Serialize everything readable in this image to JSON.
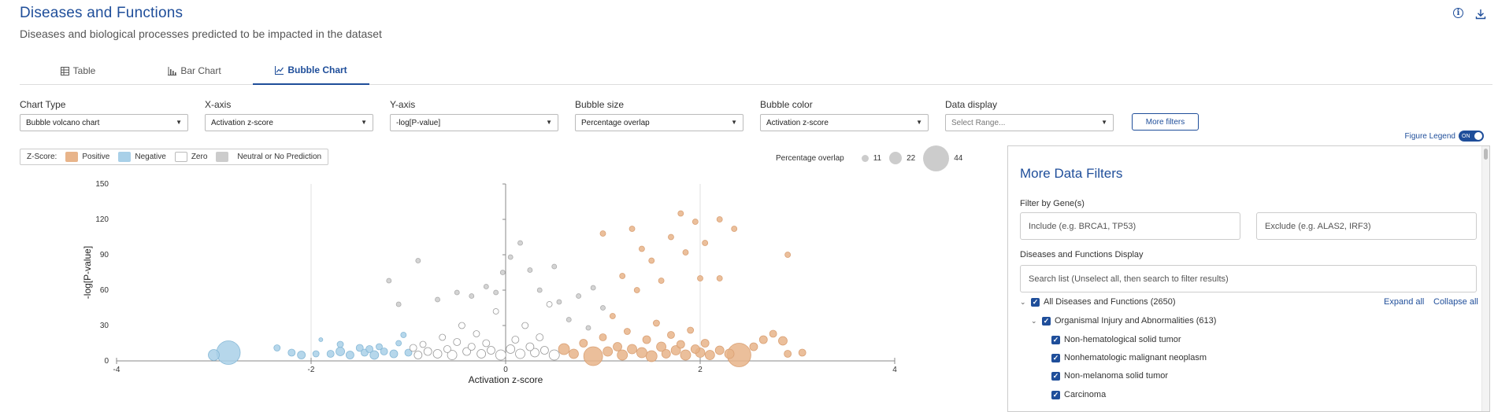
{
  "header": {
    "title": "Diseases and Functions",
    "subtitle": "Diseases and biological processes predicted to be impacted in the dataset",
    "info_icon": "info-icon",
    "download_icon": "download-icon"
  },
  "tabs": [
    {
      "label": "Table",
      "icon": "table-icon",
      "active": false
    },
    {
      "label": "Bar Chart",
      "icon": "bar-chart-icon",
      "active": false
    },
    {
      "label": "Bubble Chart",
      "icon": "line-chart-icon",
      "active": true
    }
  ],
  "controls": {
    "chart_type": {
      "label": "Chart Type",
      "value": "Bubble volcano chart"
    },
    "x_axis": {
      "label": "X-axis",
      "value": "Activation z-score"
    },
    "y_axis": {
      "label": "Y-axis",
      "value": "-log[P-value]"
    },
    "bubble_size": {
      "label": "Bubble size",
      "value": "Percentage overlap"
    },
    "bubble_color": {
      "label": "Bubble color",
      "value": "Activation z-score"
    },
    "data_display": {
      "label": "Data display",
      "placeholder": "Select Range..."
    },
    "more_filters": "More filters"
  },
  "figure_legend": {
    "label": "Figure Legend",
    "toggle": "ON",
    "enabled": true
  },
  "zscore_legend": {
    "label": "Z-Score:",
    "items": [
      {
        "label": "Positive",
        "color": "#e8b48a"
      },
      {
        "label": "Negative",
        "color": "#a9d0e8"
      },
      {
        "label": "Zero",
        "color": "#ffffff"
      },
      {
        "label": "Neutral or No Prediction",
        "color": "#cccccc"
      }
    ]
  },
  "size_legend": {
    "label": "Percentage overlap",
    "items": [
      {
        "label": "11",
        "value": 11
      },
      {
        "label": "22",
        "value": 22
      },
      {
        "label": "44",
        "value": 44
      }
    ]
  },
  "chart_data": {
    "type": "scatter",
    "subtype": "bubble",
    "xlabel": "Activation z-score",
    "ylabel": "-log[P-value]",
    "xlim": [
      -4,
      4
    ],
    "ylim": [
      0,
      150
    ],
    "xticks": [
      "-4",
      "-2",
      "0",
      "2",
      "4"
    ],
    "yticks": [
      "0",
      "30",
      "60",
      "90",
      "120",
      "150"
    ],
    "colors": {
      "positive": "#e8b48a",
      "negative": "#a9d0e8",
      "zero": "#ffffff",
      "neutral": "#cccccc"
    },
    "points": [
      {
        "x": -3.0,
        "y": 5,
        "s": 14,
        "c": "negative"
      },
      {
        "x": -2.85,
        "y": 7,
        "s": 30,
        "c": "negative"
      },
      {
        "x": -2.35,
        "y": 11,
        "s": 8,
        "c": "negative"
      },
      {
        "x": -2.2,
        "y": 7,
        "s": 9,
        "c": "negative"
      },
      {
        "x": -2.1,
        "y": 5,
        "s": 10,
        "c": "negative"
      },
      {
        "x": -1.95,
        "y": 6,
        "s": 8,
        "c": "negative"
      },
      {
        "x": -1.9,
        "y": 18,
        "s": 5,
        "c": "negative"
      },
      {
        "x": -1.8,
        "y": 6,
        "s": 9,
        "c": "negative"
      },
      {
        "x": -1.7,
        "y": 8,
        "s": 11,
        "c": "negative"
      },
      {
        "x": -1.7,
        "y": 14,
        "s": 8,
        "c": "negative"
      },
      {
        "x": -1.6,
        "y": 5,
        "s": 10,
        "c": "negative"
      },
      {
        "x": -1.5,
        "y": 11,
        "s": 9,
        "c": "negative"
      },
      {
        "x": -1.45,
        "y": 7,
        "s": 9,
        "c": "negative"
      },
      {
        "x": -1.4,
        "y": 10,
        "s": 9,
        "c": "negative"
      },
      {
        "x": -1.35,
        "y": 5,
        "s": 11,
        "c": "negative"
      },
      {
        "x": -1.3,
        "y": 12,
        "s": 8,
        "c": "negative"
      },
      {
        "x": -1.25,
        "y": 8,
        "s": 9,
        "c": "negative"
      },
      {
        "x": -1.15,
        "y": 6,
        "s": 10,
        "c": "negative"
      },
      {
        "x": -1.1,
        "y": 15,
        "s": 7,
        "c": "negative"
      },
      {
        "x": -1.05,
        "y": 22,
        "s": 7,
        "c": "negative"
      },
      {
        "x": -1.0,
        "y": 7,
        "s": 9,
        "c": "negative"
      },
      {
        "x": -0.95,
        "y": 11,
        "s": 9,
        "c": "zero"
      },
      {
        "x": -0.9,
        "y": 5,
        "s": 10,
        "c": "zero"
      },
      {
        "x": -0.85,
        "y": 14,
        "s": 8,
        "c": "zero"
      },
      {
        "x": -0.8,
        "y": 8,
        "s": 10,
        "c": "zero"
      },
      {
        "x": -0.7,
        "y": 6,
        "s": 11,
        "c": "zero"
      },
      {
        "x": -0.65,
        "y": 20,
        "s": 8,
        "c": "zero"
      },
      {
        "x": -0.6,
        "y": 10,
        "s": 9,
        "c": "zero"
      },
      {
        "x": -0.55,
        "y": 5,
        "s": 12,
        "c": "zero"
      },
      {
        "x": -0.5,
        "y": 16,
        "s": 9,
        "c": "zero"
      },
      {
        "x": -0.45,
        "y": 30,
        "s": 8,
        "c": "zero"
      },
      {
        "x": -0.4,
        "y": 8,
        "s": 10,
        "c": "zero"
      },
      {
        "x": -0.35,
        "y": 12,
        "s": 9,
        "c": "zero"
      },
      {
        "x": -0.3,
        "y": 23,
        "s": 8,
        "c": "zero"
      },
      {
        "x": -0.25,
        "y": 6,
        "s": 11,
        "c": "zero"
      },
      {
        "x": -0.2,
        "y": 15,
        "s": 9,
        "c": "zero"
      },
      {
        "x": -0.15,
        "y": 9,
        "s": 10,
        "c": "zero"
      },
      {
        "x": -0.1,
        "y": 42,
        "s": 7,
        "c": "zero"
      },
      {
        "x": -0.05,
        "y": 5,
        "s": 13,
        "c": "zero"
      },
      {
        "x": 0.05,
        "y": 10,
        "s": 11,
        "c": "zero"
      },
      {
        "x": 0.1,
        "y": 18,
        "s": 9,
        "c": "zero"
      },
      {
        "x": 0.15,
        "y": 6,
        "s": 12,
        "c": "zero"
      },
      {
        "x": 0.2,
        "y": 30,
        "s": 8,
        "c": "zero"
      },
      {
        "x": 0.25,
        "y": 12,
        "s": 10,
        "c": "zero"
      },
      {
        "x": 0.3,
        "y": 7,
        "s": 11,
        "c": "zero"
      },
      {
        "x": 0.35,
        "y": 20,
        "s": 9,
        "c": "zero"
      },
      {
        "x": 0.4,
        "y": 9,
        "s": 10,
        "c": "zero"
      },
      {
        "x": 0.45,
        "y": 48,
        "s": 7,
        "c": "zero"
      },
      {
        "x": 0.5,
        "y": 5,
        "s": 13,
        "c": "zero"
      },
      {
        "x": -1.2,
        "y": 68,
        "s": 6,
        "c": "neutral"
      },
      {
        "x": -1.1,
        "y": 48,
        "s": 6,
        "c": "neutral"
      },
      {
        "x": -0.9,
        "y": 85,
        "s": 6,
        "c": "neutral"
      },
      {
        "x": -0.7,
        "y": 52,
        "s": 6,
        "c": "neutral"
      },
      {
        "x": -0.5,
        "y": 58,
        "s": 6,
        "c": "neutral"
      },
      {
        "x": -0.35,
        "y": 55,
        "s": 6,
        "c": "neutral"
      },
      {
        "x": -0.2,
        "y": 63,
        "s": 6,
        "c": "neutral"
      },
      {
        "x": -0.1,
        "y": 58,
        "s": 6,
        "c": "neutral"
      },
      {
        "x": -0.03,
        "y": 75,
        "s": 6,
        "c": "neutral"
      },
      {
        "x": 0.05,
        "y": 88,
        "s": 6,
        "c": "neutral"
      },
      {
        "x": 0.15,
        "y": 100,
        "s": 6,
        "c": "neutral"
      },
      {
        "x": 0.25,
        "y": 77,
        "s": 6,
        "c": "neutral"
      },
      {
        "x": 0.35,
        "y": 60,
        "s": 6,
        "c": "neutral"
      },
      {
        "x": 0.5,
        "y": 80,
        "s": 6,
        "c": "neutral"
      },
      {
        "x": 0.55,
        "y": 50,
        "s": 6,
        "c": "neutral"
      },
      {
        "x": 0.75,
        "y": 55,
        "s": 6,
        "c": "neutral"
      },
      {
        "x": 0.9,
        "y": 62,
        "s": 6,
        "c": "neutral"
      },
      {
        "x": 1.0,
        "y": 45,
        "s": 6,
        "c": "neutral"
      },
      {
        "x": 0.65,
        "y": 35,
        "s": 6,
        "c": "neutral"
      },
      {
        "x": 0.85,
        "y": 28,
        "s": 6,
        "c": "neutral"
      },
      {
        "x": 0.6,
        "y": 10,
        "s": 14,
        "c": "positive"
      },
      {
        "x": 0.7,
        "y": 6,
        "s": 12,
        "c": "positive"
      },
      {
        "x": 0.8,
        "y": 15,
        "s": 10,
        "c": "positive"
      },
      {
        "x": 0.9,
        "y": 4,
        "s": 24,
        "c": "positive"
      },
      {
        "x": 1.0,
        "y": 20,
        "s": 9,
        "c": "positive"
      },
      {
        "x": 1.05,
        "y": 8,
        "s": 12,
        "c": "positive"
      },
      {
        "x": 1.1,
        "y": 38,
        "s": 7,
        "c": "positive"
      },
      {
        "x": 1.15,
        "y": 12,
        "s": 11,
        "c": "positive"
      },
      {
        "x": 1.2,
        "y": 5,
        "s": 13,
        "c": "positive"
      },
      {
        "x": 1.25,
        "y": 25,
        "s": 8,
        "c": "positive"
      },
      {
        "x": 1.3,
        "y": 10,
        "s": 12,
        "c": "positive"
      },
      {
        "x": 1.35,
        "y": 60,
        "s": 7,
        "c": "positive"
      },
      {
        "x": 1.4,
        "y": 7,
        "s": 13,
        "c": "positive"
      },
      {
        "x": 1.45,
        "y": 18,
        "s": 10,
        "c": "positive"
      },
      {
        "x": 1.5,
        "y": 4,
        "s": 14,
        "c": "positive"
      },
      {
        "x": 1.55,
        "y": 32,
        "s": 8,
        "c": "positive"
      },
      {
        "x": 1.6,
        "y": 12,
        "s": 12,
        "c": "positive"
      },
      {
        "x": 1.65,
        "y": 6,
        "s": 11,
        "c": "positive"
      },
      {
        "x": 1.7,
        "y": 22,
        "s": 9,
        "c": "positive"
      },
      {
        "x": 1.75,
        "y": 9,
        "s": 12,
        "c": "positive"
      },
      {
        "x": 1.8,
        "y": 14,
        "s": 10,
        "c": "positive"
      },
      {
        "x": 1.85,
        "y": 5,
        "s": 13,
        "c": "positive"
      },
      {
        "x": 1.9,
        "y": 26,
        "s": 8,
        "c": "positive"
      },
      {
        "x": 1.95,
        "y": 10,
        "s": 11,
        "c": "positive"
      },
      {
        "x": 2.0,
        "y": 7,
        "s": 12,
        "c": "positive"
      },
      {
        "x": 2.05,
        "y": 15,
        "s": 10,
        "c": "positive"
      },
      {
        "x": 2.1,
        "y": 5,
        "s": 12,
        "c": "positive"
      },
      {
        "x": 2.2,
        "y": 9,
        "s": 11,
        "c": "positive"
      },
      {
        "x": 2.3,
        "y": 6,
        "s": 12,
        "c": "positive"
      },
      {
        "x": 2.4,
        "y": 5,
        "s": 30,
        "c": "positive"
      },
      {
        "x": 2.55,
        "y": 12,
        "s": 10,
        "c": "positive"
      },
      {
        "x": 2.65,
        "y": 18,
        "s": 10,
        "c": "positive"
      },
      {
        "x": 2.75,
        "y": 23,
        "s": 9,
        "c": "positive"
      },
      {
        "x": 2.85,
        "y": 17,
        "s": 11,
        "c": "positive"
      },
      {
        "x": 2.9,
        "y": 6,
        "s": 9,
        "c": "positive"
      },
      {
        "x": 3.05,
        "y": 7,
        "s": 9,
        "c": "positive"
      },
      {
        "x": 1.0,
        "y": 108,
        "s": 7,
        "c": "positive"
      },
      {
        "x": 1.3,
        "y": 112,
        "s": 7,
        "c": "positive"
      },
      {
        "x": 1.4,
        "y": 95,
        "s": 7,
        "c": "positive"
      },
      {
        "x": 1.5,
        "y": 85,
        "s": 7,
        "c": "positive"
      },
      {
        "x": 1.7,
        "y": 105,
        "s": 7,
        "c": "positive"
      },
      {
        "x": 1.8,
        "y": 125,
        "s": 7,
        "c": "positive"
      },
      {
        "x": 1.85,
        "y": 92,
        "s": 7,
        "c": "positive"
      },
      {
        "x": 1.95,
        "y": 118,
        "s": 7,
        "c": "positive"
      },
      {
        "x": 2.05,
        "y": 100,
        "s": 7,
        "c": "positive"
      },
      {
        "x": 2.2,
        "y": 120,
        "s": 7,
        "c": "positive"
      },
      {
        "x": 2.35,
        "y": 112,
        "s": 7,
        "c": "positive"
      },
      {
        "x": 2.2,
        "y": 70,
        "s": 7,
        "c": "positive"
      },
      {
        "x": 2.0,
        "y": 70,
        "s": 7,
        "c": "positive"
      },
      {
        "x": 1.6,
        "y": 68,
        "s": 7,
        "c": "positive"
      },
      {
        "x": 2.9,
        "y": 90,
        "s": 7,
        "c": "positive"
      },
      {
        "x": 1.2,
        "y": 72,
        "s": 7,
        "c": "positive"
      }
    ]
  },
  "more_filters_panel": {
    "title": "More Data Filters",
    "filter_by_genes_label": "Filter by Gene(s)",
    "include_placeholder": "Include (e.g. BRCA1, TP53)",
    "exclude_placeholder": "Exclude (e.g. ALAS2, IRF3)",
    "display_label": "Diseases and Functions Display",
    "search_placeholder": "Search list (Unselect all, then search to filter results)",
    "expand_all": "Expand all",
    "collapse_all": "Collapse all",
    "tree": [
      {
        "label": "All Diseases and Functions (2650)",
        "level": 0,
        "expandable": true,
        "checked": true
      },
      {
        "label": "Organismal Injury and Abnormalities (613)",
        "level": 1,
        "expandable": true,
        "checked": true
      },
      {
        "label": "Non-hematological solid tumor",
        "level": 2,
        "expandable": false,
        "checked": true
      },
      {
        "label": "Nonhematologic malignant neoplasm",
        "level": 2,
        "expandable": false,
        "checked": true
      },
      {
        "label": "Non-melanoma solid tumor",
        "level": 2,
        "expandable": false,
        "checked": true
      },
      {
        "label": "Carcinoma",
        "level": 2,
        "expandable": false,
        "checked": true
      }
    ]
  }
}
